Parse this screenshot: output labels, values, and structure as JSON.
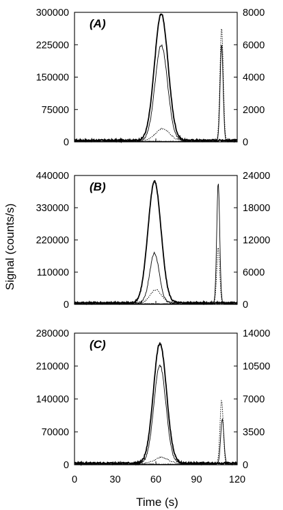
{
  "chart_data": {
    "type": "line",
    "ylabel": "Signal (counts/s)",
    "xlabel": "Time (s)",
    "xlim": [
      0,
      120
    ],
    "x_ticks": [
      "0",
      "30",
      "60",
      "90",
      "120"
    ],
    "panels": [
      {
        "label_text": "(A)",
        "left_ylim": [
          0,
          300000
        ],
        "right_ylim": [
          0,
          8000
        ],
        "left_ticks": [
          "0",
          "75000",
          "150000",
          "225000",
          "300000"
        ],
        "right_ticks": [
          "0",
          "2000",
          "4000",
          "6000",
          "8000"
        ],
        "peaks": [
          {
            "center": 64,
            "width": 5,
            "axis": "left",
            "height": 293000,
            "style": "solid-bold"
          },
          {
            "center": 64,
            "width": 4.6,
            "axis": "left",
            "height": 220000,
            "style": "solid-thin"
          },
          {
            "center": 65,
            "width": 5,
            "axis": "left",
            "height": 27000,
            "style": "dotted"
          },
          {
            "center": 108.5,
            "width": 1.2,
            "axis": "right",
            "height": 7000,
            "style": "dotted"
          },
          {
            "center": 108.5,
            "width": 1.1,
            "axis": "right",
            "height": 6000,
            "style": "solid-thin"
          }
        ]
      },
      {
        "label_text": "(B)",
        "left_ylim": [
          0,
          440000
        ],
        "right_ylim": [
          0,
          24000
        ],
        "left_ticks": [
          "0",
          "110000",
          "220000",
          "330000",
          "440000"
        ],
        "right_ticks": [
          "0",
          "6000",
          "12000",
          "18000",
          "24000"
        ],
        "peaks": [
          {
            "center": 59,
            "width": 4.8,
            "axis": "left",
            "height": 415000,
            "style": "solid-bold"
          },
          {
            "center": 59,
            "width": 3.5,
            "axis": "left",
            "height": 170000,
            "style": "solid-thin"
          },
          {
            "center": 60,
            "width": 4,
            "axis": "left",
            "height": 45000,
            "style": "dotted"
          },
          {
            "center": 106,
            "width": 1.1,
            "axis": "right",
            "height": 22500,
            "style": "solid-thin"
          },
          {
            "center": 106,
            "width": 1.1,
            "axis": "right",
            "height": 10500,
            "style": "dotted"
          }
        ]
      },
      {
        "label_text": "(C)",
        "left_ylim": [
          0,
          280000
        ],
        "right_ylim": [
          0,
          14000
        ],
        "left_ticks": [
          "0",
          "70000",
          "140000",
          "210000",
          "280000"
        ],
        "right_ticks": [
          "0",
          "3500",
          "7000",
          "10500",
          "14000"
        ],
        "peaks": [
          {
            "center": 63,
            "width": 4.8,
            "axis": "left",
            "height": 255000,
            "style": "solid-bold"
          },
          {
            "center": 63,
            "width": 4.4,
            "axis": "left",
            "height": 208000,
            "style": "solid-thin"
          },
          {
            "center": 64,
            "width": 5,
            "axis": "left",
            "height": 12000,
            "style": "dotted"
          },
          {
            "center": 108.5,
            "width": 1.2,
            "axis": "right",
            "height": 6800,
            "style": "dotted"
          },
          {
            "center": 109,
            "width": 1.2,
            "axis": "right",
            "height": 4800,
            "style": "solid-thin"
          }
        ]
      }
    ]
  }
}
